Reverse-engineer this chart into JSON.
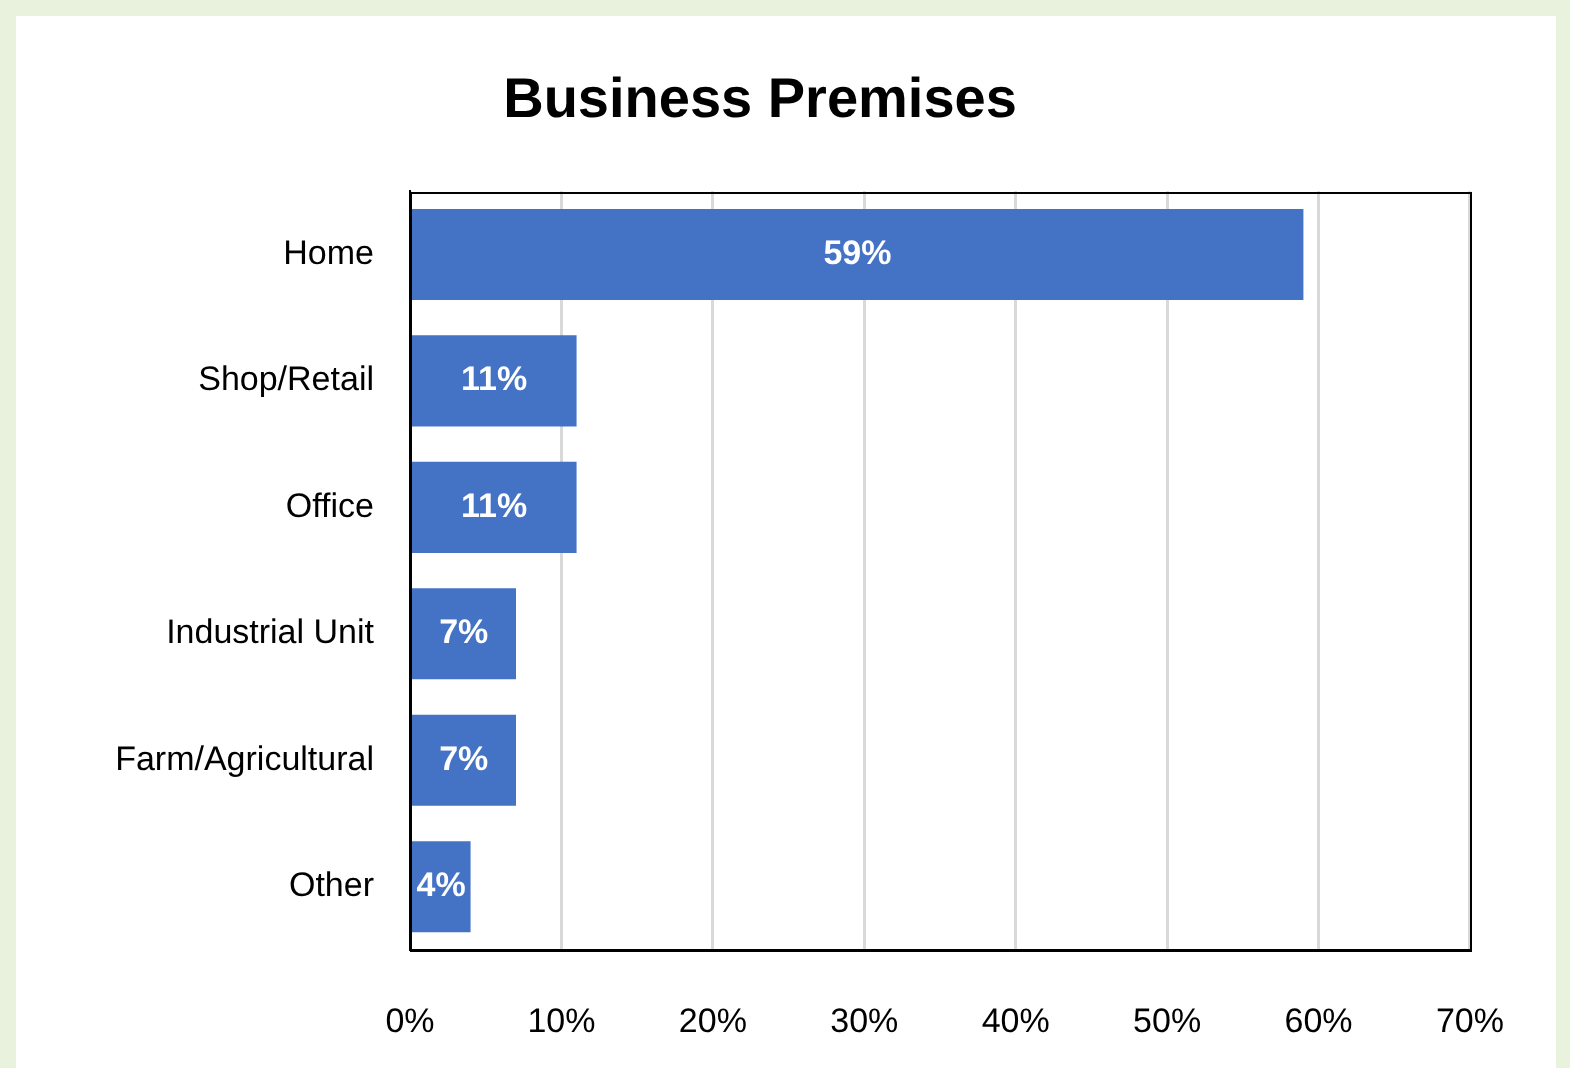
{
  "chart_data": {
    "type": "bar",
    "orientation": "horizontal",
    "title": "Business Premises",
    "categories": [
      "Home",
      "Shop/Retail",
      "Office",
      "Industrial Unit",
      "Farm/Agricultural",
      "Other"
    ],
    "values": [
      59,
      11,
      11,
      7,
      7,
      4
    ],
    "value_labels": [
      "59%",
      "11%",
      "11%",
      "7%",
      "7%",
      "4%"
    ],
    "color": "#4472c4",
    "xlim": [
      0,
      70
    ],
    "xticks": [
      {
        "value": 0,
        "label": "0%"
      },
      {
        "value": 10,
        "label": "10%"
      },
      {
        "value": 20,
        "label": "20%"
      },
      {
        "value": 30,
        "label": "30%"
      },
      {
        "value": 40,
        "label": "40%"
      },
      {
        "value": 50,
        "label": "50%"
      },
      {
        "value": 60,
        "label": "60%"
      },
      {
        "value": 70,
        "label": "70%"
      }
    ],
    "grid": "x",
    "legend": false
  }
}
